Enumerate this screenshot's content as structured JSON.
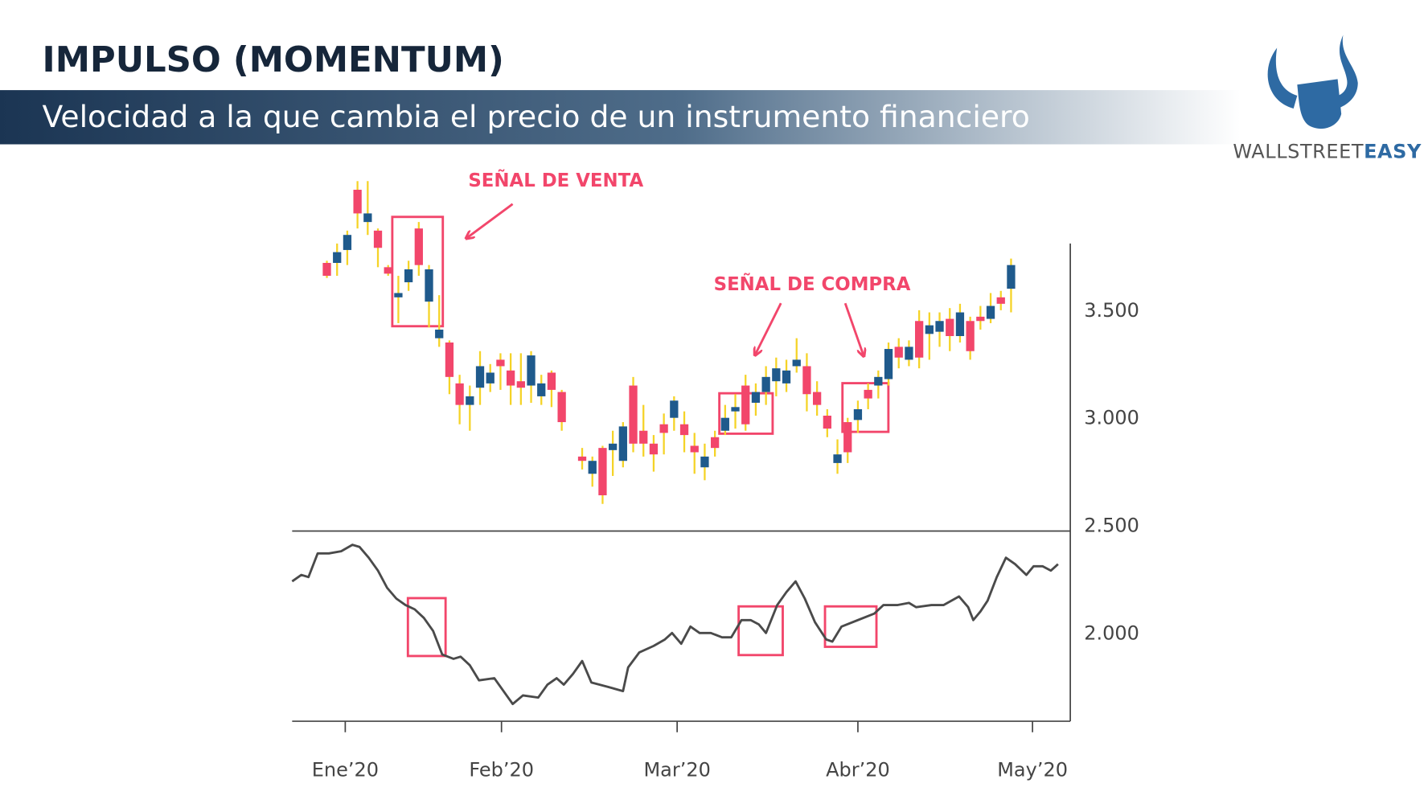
{
  "header": {
    "title": "IMPULSO (MOMENTUM)",
    "subtitle": "Velocidad a la que cambia el precio de un instrumento financiero"
  },
  "logo": {
    "text1": "WALLSTREET",
    "text2": "EASY"
  },
  "chart_data": {
    "type": "candlestick",
    "x": [
      0,
      1,
      2,
      3,
      4,
      5,
      6,
      7,
      8,
      9,
      10,
      11,
      12,
      13,
      14,
      15,
      16,
      17,
      18,
      19,
      20,
      21,
      22,
      23,
      25,
      26,
      27,
      28,
      29,
      30,
      31,
      32,
      33,
      34,
      35,
      36,
      37,
      38,
      39,
      40,
      41,
      42,
      43,
      44,
      45,
      46,
      47,
      48,
      49,
      50,
      51,
      52,
      53,
      54,
      55,
      56,
      57,
      58,
      59,
      60,
      61,
      62,
      63,
      64,
      65,
      66,
      67
    ],
    "open": [
      3720,
      3720,
      3780,
      4060,
      3910,
      3870,
      3700,
      3560,
      3630,
      3880,
      3540,
      3370,
      3350,
      3160,
      3060,
      3140,
      3160,
      3270,
      3220,
      3170,
      3150,
      3100,
      3210,
      3120,
      2820,
      2740,
      2860,
      2850,
      2800,
      3150,
      2940,
      2880,
      2970,
      3000,
      2970,
      2870,
      2770,
      2910,
      2940,
      3030,
      3150,
      3070,
      3120,
      3170,
      3160,
      3240,
      3240,
      3120,
      3010,
      2790,
      2980,
      2990,
      3130,
      3150,
      3180,
      3330,
      3270,
      3450,
      3390,
      3400,
      3460,
      3380,
      3450,
      3470,
      3460,
      3560,
      3600
    ],
    "high": [
      3730,
      3810,
      3870,
      4100,
      4100,
      3880,
      3710,
      3660,
      3730,
      3910,
      3710,
      3570,
      3360,
      3200,
      3150,
      3310,
      3250,
      3300,
      3300,
      3300,
      3310,
      3200,
      3220,
      3130,
      2860,
      2820,
      2870,
      2940,
      2980,
      3190,
      3060,
      2920,
      3020,
      3100,
      3030,
      2930,
      2880,
      2940,
      3060,
      3110,
      3200,
      3160,
      3240,
      3280,
      3270,
      3370,
      3300,
      3170,
      3040,
      2900,
      3000,
      3080,
      3160,
      3220,
      3350,
      3370,
      3360,
      3500,
      3490,
      3490,
      3510,
      3530,
      3470,
      3520,
      3580,
      3590,
      3740
    ],
    "low": [
      3650,
      3660,
      3710,
      3880,
      3850,
      3700,
      3660,
      3440,
      3590,
      3660,
      3420,
      3330,
      3110,
      2970,
      2940,
      3060,
      3120,
      3130,
      3060,
      3060,
      3070,
      3060,
      3050,
      2940,
      2760,
      2680,
      2600,
      2730,
      2770,
      2840,
      2820,
      2750,
      2830,
      2940,
      2840,
      2740,
      2710,
      2820,
      2920,
      2950,
      2940,
      3010,
      3060,
      3100,
      3120,
      3210,
      3030,
      3010,
      2910,
      2740,
      2790,
      2930,
      3040,
      3090,
      3150,
      3230,
      3240,
      3230,
      3270,
      3330,
      3310,
      3350,
      3270,
      3410,
      3440,
      3500,
      3490
    ],
    "close": [
      3660,
      3770,
      3850,
      3950,
      3950,
      3790,
      3670,
      3580,
      3690,
      3710,
      3690,
      3410,
      3190,
      3060,
      3100,
      3240,
      3210,
      3240,
      3150,
      3140,
      3290,
      3160,
      3130,
      2980,
      2800,
      2800,
      2640,
      2880,
      2960,
      2880,
      2880,
      2830,
      2930,
      3080,
      2920,
      2840,
      2820,
      2860,
      3000,
      3050,
      2970,
      3120,
      3190,
      3230,
      3220,
      3270,
      3110,
      3060,
      2950,
      2830,
      2840,
      3040,
      3090,
      3190,
      3320,
      3280,
      3330,
      3280,
      3430,
      3450,
      3380,
      3490,
      3310,
      3450,
      3520,
      3530,
      3710
    ],
    "up_color": "#1f5a8c",
    "down_color": "#f2466b",
    "wick_color": "#f5d327",
    "indicator": {
      "type": "line",
      "color": "#4a4a4a",
      "x": [
        -3.4,
        -2.5,
        -1.8,
        -0.9,
        0.2,
        1.4,
        2.5,
        3.2,
        4.1,
        5.0,
        5.9,
        6.8,
        7.7,
        8.6,
        9.5,
        10.4,
        11.3,
        12.4,
        13.1,
        14.0,
        14.9,
        16.4,
        18.2,
        19.2,
        20.7,
        21.6,
        22.5,
        23.2,
        24.1,
        25.0,
        25.9,
        27.5,
        29.0,
        29.5,
        30.6,
        32.0,
        33.1,
        33.8,
        34.7,
        35.6,
        36.5,
        37.6,
        38.7,
        39.6,
        40.6,
        41.5,
        42.3,
        43.0,
        44.1,
        45.0,
        45.9,
        46.8,
        47.8,
        48.9,
        49.5,
        50.4,
        52.0,
        53.6,
        54.5,
        55.9,
        57.0,
        57.7,
        59.2,
        60.4,
        61.9,
        62.8,
        63.3,
        64.0,
        64.7,
        65.6,
        66.5,
        67.4,
        68.5,
        69.2,
        70.1,
        70.9,
        71.6
      ],
      "values": [
        2240,
        2270,
        2260,
        2370,
        2370,
        2380,
        2410,
        2400,
        2350,
        2290,
        2210,
        2160,
        2130,
        2110,
        2070,
        2010,
        1900,
        1880,
        1890,
        1850,
        1780,
        1790,
        1670,
        1710,
        1700,
        1760,
        1790,
        1760,
        1810,
        1870,
        1770,
        1750,
        1730,
        1840,
        1910,
        1940,
        1970,
        2000,
        1950,
        2030,
        2000,
        2000,
        1980,
        1980,
        2060,
        2060,
        2040,
        2000,
        2130,
        2190,
        2240,
        2160,
        2050,
        1970,
        1960,
        2030,
        2060,
        2090,
        2130,
        2130,
        2140,
        2120,
        2130,
        2130,
        2170,
        2120,
        2060,
        2100,
        2150,
        2260,
        2350,
        2320,
        2270,
        2310,
        2310,
        2290,
        2320
      ]
    },
    "ylim": [
      1590,
      3810
    ],
    "yticks": [
      {
        "value": 2000,
        "label": "2.000"
      },
      {
        "value": 2500,
        "label": "2.500"
      },
      {
        "value": 3000,
        "label": "3.000"
      },
      {
        "value": 3500,
        "label": "3.500"
      }
    ],
    "xlim": [
      -3.4,
      72.8
    ],
    "xticks": [
      {
        "value": 1.8,
        "label": "Ene’20"
      },
      {
        "value": 17.1,
        "label": "Feb’20"
      },
      {
        "value": 34.3,
        "label": "Mar’20"
      },
      {
        "value": 52.0,
        "label": "Abr’20"
      },
      {
        "value": 69.1,
        "label": "May’20"
      }
    ],
    "annotations": [
      "SEÑAL DE VENTA",
      "SEÑAL DE COMPRA"
    ]
  }
}
